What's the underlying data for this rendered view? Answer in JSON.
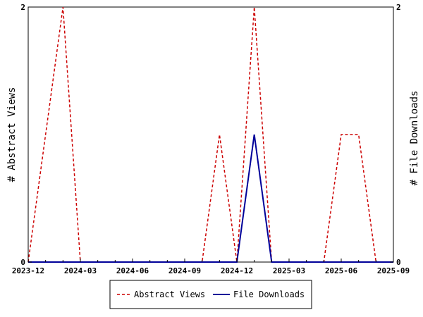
{
  "chart_data": {
    "type": "line",
    "x": [
      "2023-12",
      "2024-01",
      "2024-02",
      "2024-03",
      "2024-04",
      "2024-05",
      "2024-06",
      "2024-07",
      "2024-08",
      "2024-09",
      "2024-10",
      "2024-11",
      "2024-12",
      "2025-01",
      "2025-02",
      "2025-03",
      "2025-04",
      "2025-05",
      "2025-06",
      "2025-07",
      "2025-08",
      "2025-09"
    ],
    "x_ticks": [
      "2023-12",
      "2024-03",
      "2024-06",
      "2024-09",
      "2024-12",
      "2025-03",
      "2025-06",
      "2025-09"
    ],
    "series": [
      {
        "name": "Abstract Views",
        "axis": "left",
        "color": "#cc0000",
        "dash": "dashed",
        "values": [
          0,
          1,
          2,
          0,
          0,
          0,
          0,
          0,
          0,
          0,
          0,
          1,
          0,
          2,
          0,
          0,
          0,
          0,
          1,
          1,
          0,
          0
        ]
      },
      {
        "name": "File Downloads",
        "axis": "right",
        "color": "#000099",
        "dash": "solid",
        "values": [
          0,
          0,
          0,
          0,
          0,
          0,
          0,
          0,
          0,
          0,
          0,
          0,
          0,
          1,
          0,
          0,
          0,
          0,
          0,
          0,
          0,
          0
        ]
      }
    ],
    "ylabel_left": "# Abstract Views",
    "ylabel_right": "# File Downloads",
    "ylim_left": [
      0,
      2
    ],
    "ylim_right": [
      0,
      2
    ],
    "y_ticks_left": [
      "0",
      "2"
    ],
    "y_ticks_right": [
      "0",
      "2"
    ],
    "grid": false,
    "legend_position": "bottom-center"
  }
}
